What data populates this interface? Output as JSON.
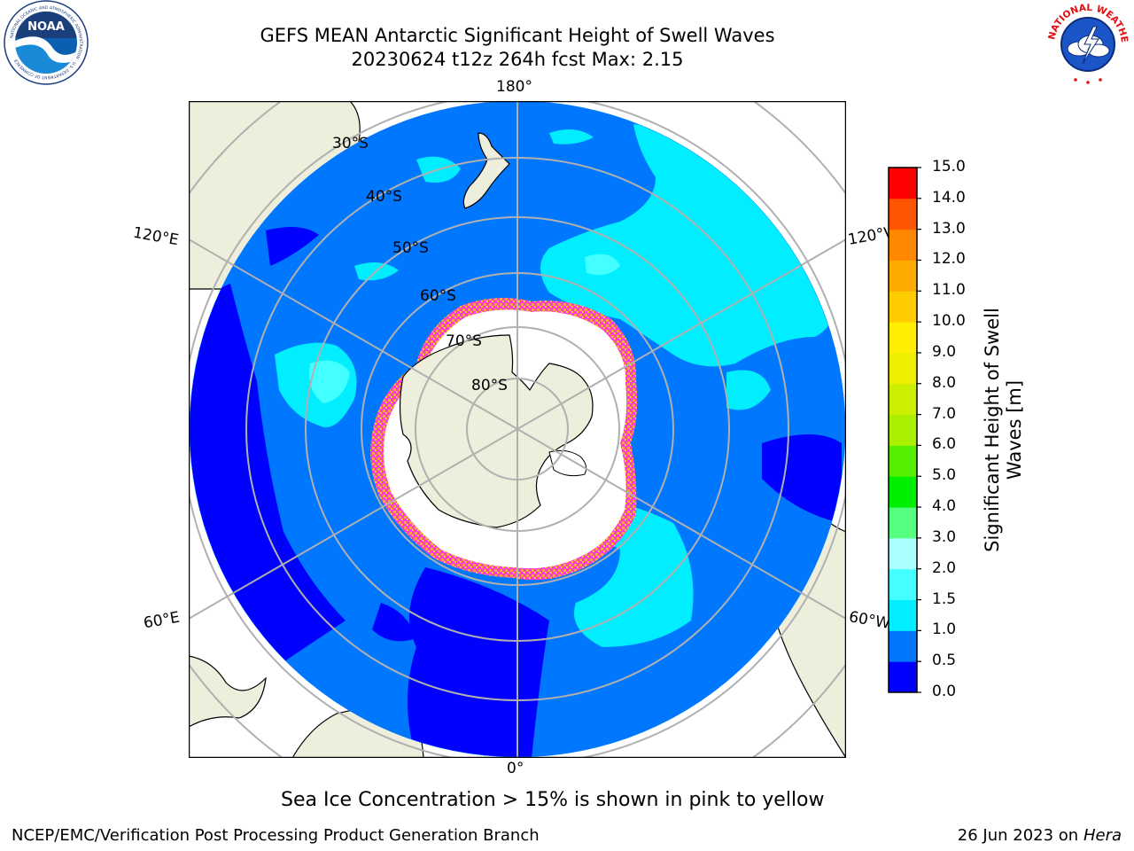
{
  "title": {
    "line1": "GEFS MEAN Antarctic Significant Height of Swell Waves",
    "line2": "20230624 t12z 264h fcst   Max: 2.15"
  },
  "map": {
    "projection": "south polar stereographic",
    "lat_labels": [
      "30°S",
      "40°S",
      "50°S",
      "60°S",
      "70°S",
      "80°S"
    ],
    "lon_labels": {
      "top": "180°",
      "bottom": "0°",
      "left_upper": "120°E",
      "left_lower": "60°E",
      "right_upper": "120°W",
      "right_lower": "60°W"
    },
    "colors": {
      "land": "#eeeedc",
      "ice_shelf": "#ffffff",
      "ice_edge": [
        "#ff00ff",
        "#ffa060",
        "#ffd700"
      ],
      "grid": "#b0b0b0"
    }
  },
  "colorbar": {
    "label_line1": "Significant Height of Swell",
    "label_line2": "Waves [m]",
    "ticks": [
      "0.0",
      "0.5",
      "1.0",
      "1.5",
      "2.0",
      "3.0",
      "4.0",
      "5.0",
      "6.0",
      "7.0",
      "8.0",
      "9.0",
      "10.0",
      "11.0",
      "12.0",
      "13.0",
      "14.0",
      "15.0"
    ],
    "colors": [
      "#0000ff",
      "#0077ff",
      "#00eeff",
      "#44ffff",
      "#aaffff",
      "#55ff80",
      "#00ee00",
      "#55ee00",
      "#aaee00",
      "#ccee00",
      "#eeee00",
      "#ffee00",
      "#ffcc00",
      "#ffaa00",
      "#ff8800",
      "#ff5500",
      "#ff0000"
    ]
  },
  "footnote": "Sea Ice Concentration > 15% is shown in pink to yellow",
  "credit_left": "NCEP/EMC/Verification Post Processing Product Generation Branch",
  "credit_date": "26 Jun 2023 on",
  "credit_host": "Hera",
  "logos": {
    "noaa": "NOAA",
    "noaa_ring": "NATIONAL OCEANIC AND ATMOSPHERIC ADMINISTRATION · U.S. DEPARTMENT OF COMMERCE",
    "nws_ring": "NATIONAL WEATHER SERVICE"
  }
}
